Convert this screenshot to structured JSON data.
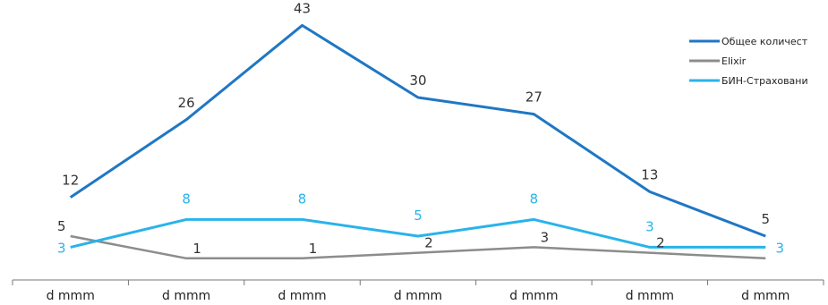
{
  "chart_data": {
    "type": "line",
    "categories": [
      "d mmm",
      "d mmm",
      "d mmm",
      "d mmm",
      "d mmm",
      "d mmm",
      "d mmm"
    ],
    "ylim": [
      0,
      45
    ],
    "grid": false,
    "legend_position": "top-right",
    "series": [
      {
        "name": "Общее количест",
        "color": "#1f77c4",
        "values": [
          12,
          26,
          43,
          30,
          27,
          13,
          5
        ],
        "labels": [
          "12",
          "26",
          "43",
          "30",
          "27",
          "13",
          "5"
        ]
      },
      {
        "name": "Elixir",
        "color": "#8c8c8c",
        "values": [
          5,
          1,
          1,
          2,
          3,
          2,
          1
        ],
        "labels": [
          "5",
          "1",
          "1",
          "2",
          "3",
          "2",
          ""
        ]
      },
      {
        "name": "БИН-Страховани",
        "color": "#29b3ea",
        "values": [
          3,
          8,
          8,
          5,
          8,
          3,
          3
        ],
        "labels": [
          "3",
          "8",
          "8",
          "5",
          "8",
          "3",
          "3"
        ]
      }
    ]
  }
}
